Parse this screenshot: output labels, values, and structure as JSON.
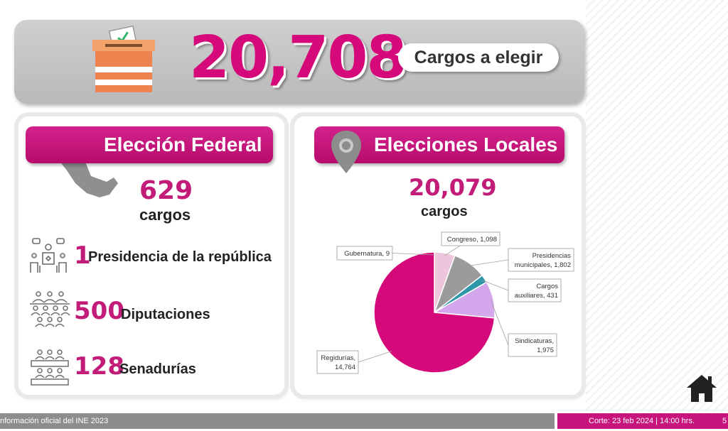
{
  "banner": {
    "total": "20,708",
    "pill_label": "Cargos a elegir"
  },
  "federal": {
    "title": "Elección Federal",
    "total": "629",
    "unit": "cargos",
    "items": [
      {
        "count": "1",
        "label": "Presidencia de la república"
      },
      {
        "count": "500",
        "label": "Diputaciones"
      },
      {
        "count": "128",
        "label": "Senadurías"
      }
    ]
  },
  "local": {
    "title": "Elecciones Locales",
    "total": "20,079",
    "unit": "cargos"
  },
  "chart_data": {
    "type": "pie",
    "categories": [
      "Gubernatura",
      "Congreso",
      "Presidencias municipales",
      "Cargos auxiliares",
      "Sindicaturas",
      "Regidurías"
    ],
    "values": [
      9,
      1098,
      1802,
      431,
      1975,
      14764
    ],
    "colors": [
      "#f4c6dc",
      "#eec6dc",
      "#9b9b9b",
      "#2e98a8",
      "#d4a6ec",
      "#d6097a"
    ],
    "labels": [
      [
        "Gubernatura, 9"
      ],
      [
        "Congreso, 1,098"
      ],
      [
        "Presidencias",
        "municipales, 1,802"
      ],
      [
        "Cargos",
        "auxiliares, 431"
      ],
      [
        "Sindicaturas,",
        "1,975"
      ],
      [
        "Regidurías,",
        "14,764"
      ]
    ]
  },
  "footer": {
    "source": "nformación oficial del INE 2023",
    "cutoff": "Corte: 23 feb 2024 | 14:00 hrs.",
    "page": "5"
  },
  "colors": {
    "accent": "#d6097a",
    "header_pink": "#c8157e",
    "gray": "#b9b9b9"
  }
}
